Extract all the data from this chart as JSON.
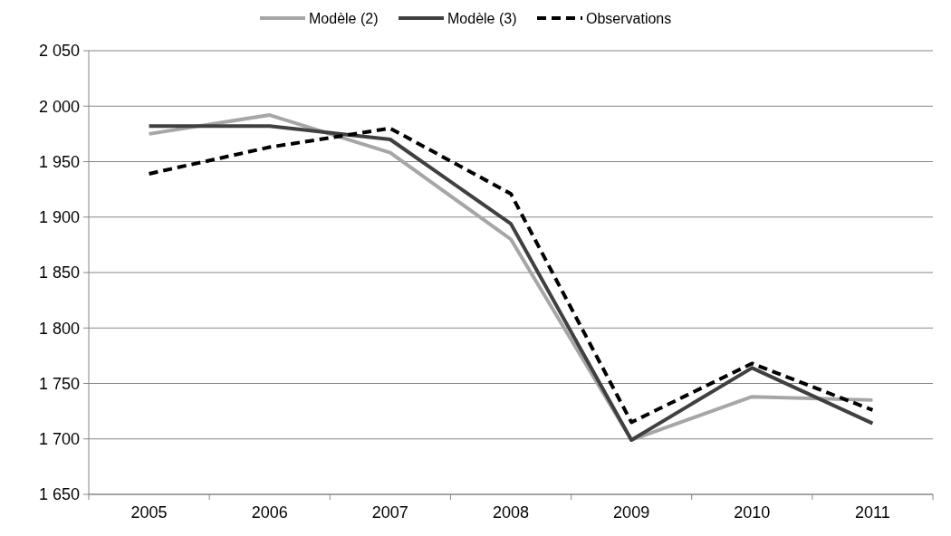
{
  "chart_data": {
    "type": "line",
    "categories": [
      "2005",
      "2006",
      "2007",
      "2008",
      "2009",
      "2010",
      "2011"
    ],
    "series": [
      {
        "name": "Modèle (2)",
        "color": "#a6a6a6",
        "values": [
          1975,
          1992,
          1958,
          1880,
          1699,
          1738,
          1735
        ]
      },
      {
        "name": "Modèle (3)",
        "color": "#404040",
        "values": [
          1982,
          1982,
          1970,
          1894,
          1699,
          1764,
          1714
        ]
      },
      {
        "name": "Observations",
        "color": "#000000",
        "line_style": "dashed",
        "values": [
          1939,
          1963,
          1980,
          1921,
          1715,
          1768,
          1726
        ]
      }
    ],
    "ylim": [
      1650,
      2050
    ],
    "yticks": [
      {
        "value": 1650,
        "label": "1 650"
      },
      {
        "value": 1700,
        "label": "1 700"
      },
      {
        "value": 1750,
        "label": "1 750"
      },
      {
        "value": 1800,
        "label": "1 800"
      },
      {
        "value": 1850,
        "label": "1 850"
      },
      {
        "value": 1900,
        "label": "1 900"
      },
      {
        "value": 1950,
        "label": "1 950"
      },
      {
        "value": 2000,
        "label": "2 000"
      },
      {
        "value": 2050,
        "label": "2 050"
      }
    ],
    "grid": "y",
    "legend": "top",
    "marker": "none",
    "line_style": "solid"
  }
}
